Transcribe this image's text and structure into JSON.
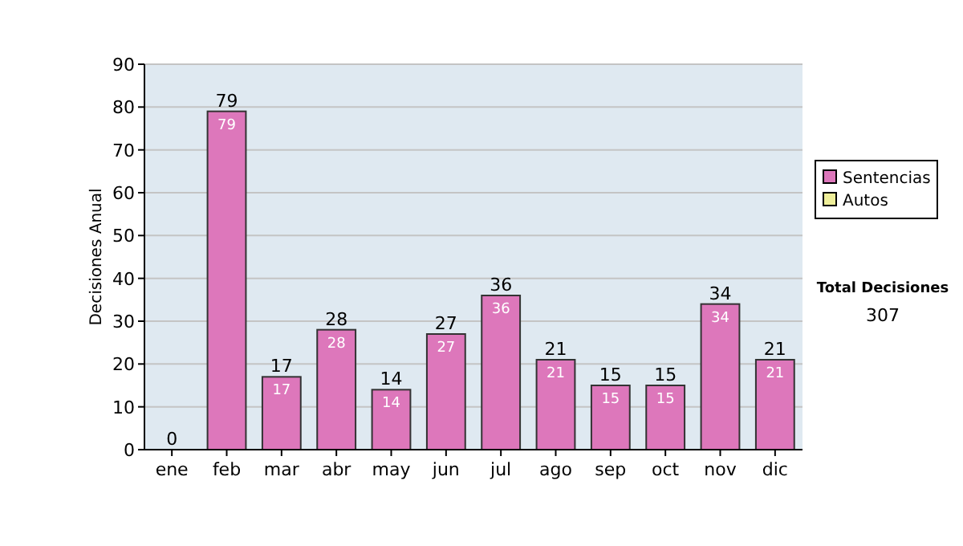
{
  "chart_data": {
    "type": "bar",
    "stacked": true,
    "ylabel": "Decisiones Anual",
    "categories": [
      "ene",
      "feb",
      "mar",
      "abr",
      "may",
      "jun",
      "jul",
      "ago",
      "sep",
      "oct",
      "nov",
      "dic"
    ],
    "series": [
      {
        "name": "Sentencias",
        "color": "#dd77bb",
        "values": [
          0,
          79,
          17,
          28,
          14,
          27,
          36,
          21,
          15,
          15,
          34,
          21
        ],
        "value_labels": [
          null,
          "79",
          "17",
          "28",
          "14",
          "27",
          "36",
          "21",
          "15",
          "15",
          "34",
          "21"
        ]
      },
      {
        "name": "Autos",
        "color": "#eeee99",
        "values": [
          0,
          0,
          0,
          0,
          0,
          0,
          0,
          0,
          0,
          0,
          0,
          0
        ]
      }
    ],
    "totals": [
      "0",
      "79",
      "17",
      "28",
      "14",
      "27",
      "36",
      "21",
      "15",
      "15",
      "34",
      "21"
    ],
    "ylim": [
      0,
      90
    ],
    "yticks": [
      0,
      10,
      20,
      30,
      40,
      50,
      60,
      70,
      80,
      90
    ],
    "grid": "y",
    "legend": "right",
    "annotations": [
      "Total Decisiones",
      "307"
    ]
  }
}
